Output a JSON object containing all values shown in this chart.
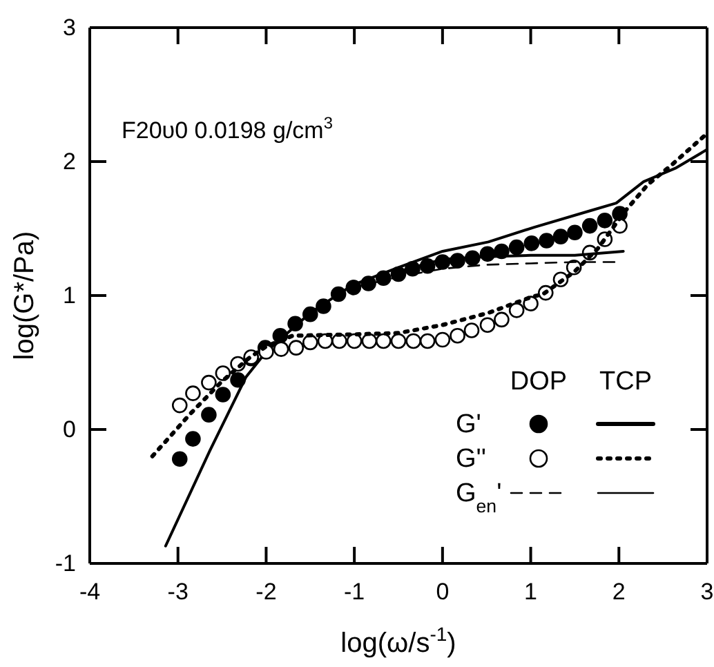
{
  "chart_data": {
    "type": "line",
    "xlabel": "log(ω/s$^{-1}$)",
    "ylabel": "log(G*/Pa)",
    "xlim": [
      -4,
      3
    ],
    "ylim": [
      -1,
      3
    ],
    "xticks": [
      -4,
      -3,
      -2,
      -1,
      0,
      1,
      2,
      3
    ],
    "yticks": [
      -1,
      0,
      1,
      2,
      3
    ],
    "grid": false,
    "legend": "bottom right",
    "annotations": [
      "F20υ0 0.0198 g/cm$^{3}$",
      "DOP",
      "TCP"
    ],
    "series": [
      {
        "name": "G'",
        "type": "scatter",
        "marker": "circle",
        "color": "#000000",
        "x": [
          -2.98,
          -2.83,
          -2.65,
          -2.49,
          -2.32,
          -2.17,
          -2.01,
          -1.84,
          -1.67,
          -1.5,
          -1.35,
          -1.18,
          -1.01,
          -0.84,
          -0.67,
          -0.5,
          -0.34,
          -0.17,
          0,
          0.17,
          0.34,
          0.51,
          0.67,
          0.84,
          1.01,
          1.18,
          1.34,
          1.5,
          1.67,
          1.84,
          2.01
        ],
        "values": [
          -0.22,
          -0.07,
          0.11,
          0.26,
          0.37,
          0.53,
          0.61,
          0.7,
          0.79,
          0.86,
          0.92,
          1.01,
          1.06,
          1.09,
          1.13,
          1.16,
          1.2,
          1.22,
          1.25,
          1.26,
          1.28,
          1.31,
          1.33,
          1.36,
          1.39,
          1.41,
          1.44,
          1.47,
          1.52,
          1.56,
          1.61
        ]
      },
      {
        "line_style": "solid",
        "color": "#000000",
        "x": [
          -3.14,
          -2.64,
          -2.23,
          -2.0,
          -1.5,
          -1.18,
          -1.01,
          -0.5,
          0,
          0.52,
          1.04,
          1.66,
          1.97,
          2.28,
          2.64,
          3.0
        ],
        "values": [
          -0.87,
          -0.16,
          0.39,
          0.58,
          0.87,
          1.01,
          1.08,
          1.21,
          1.33,
          1.4,
          1.51,
          1.63,
          1.69,
          1.85,
          1.95,
          2.09
        ]
      },
      {
        "name": "G''",
        "type": "scatter",
        "marker": "circle-open",
        "color": "#000000",
        "x": [
          -2.98,
          -2.83,
          -2.65,
          -2.49,
          -2.32,
          -2.17,
          -2.0,
          -1.83,
          -1.66,
          -1.5,
          -1.33,
          -1.17,
          -1.0,
          -0.83,
          -0.67,
          -0.5,
          -0.33,
          -0.17,
          0,
          0.17,
          0.33,
          0.51,
          0.67,
          0.84,
          1.0,
          1.17,
          1.34,
          1.49,
          1.67,
          1.84,
          2.01
        ],
        "values": [
          0.18,
          0.27,
          0.35,
          0.42,
          0.49,
          0.54,
          0.58,
          0.6,
          0.61,
          0.65,
          0.66,
          0.66,
          0.66,
          0.66,
          0.66,
          0.66,
          0.66,
          0.66,
          0.67,
          0.7,
          0.74,
          0.78,
          0.82,
          0.89,
          0.94,
          1.02,
          1.12,
          1.21,
          1.32,
          1.42,
          1.52
        ]
      },
      {
        "line_style": "dotted",
        "color": "#000000",
        "x": [
          -3.29,
          -2.87,
          -2.5,
          -2.2,
          -2.0,
          -1.7,
          -1.0,
          -0.5,
          0,
          0.52,
          1.01,
          1.14,
          1.5,
          1.76,
          2.07,
          2.33,
          2.59,
          3.0
        ],
        "values": [
          -0.2,
          0.11,
          0.36,
          0.53,
          0.62,
          0.7,
          0.71,
          0.72,
          0.78,
          0.87,
          0.99,
          1.01,
          1.18,
          1.35,
          1.63,
          1.83,
          1.97,
          2.21
        ]
      },
      {
        "name": "G$_{en}$'",
        "line_style": "dashed",
        "color": "#000000",
        "x": [
          -1.0,
          -0.5,
          0,
          0.5,
          1.0,
          1.5,
          2.0
        ],
        "values": [
          1.06,
          1.14,
          1.2,
          1.23,
          1.24,
          1.25,
          1.25
        ]
      },
      {
        "line_style": "solid",
        "color": "#000000",
        "x": [
          -0.5,
          0,
          0.5,
          1.0,
          1.5,
          2.05
        ],
        "values": [
          1.18,
          1.27,
          1.29,
          1.3,
          1.3,
          1.33
        ]
      }
    ]
  }
}
